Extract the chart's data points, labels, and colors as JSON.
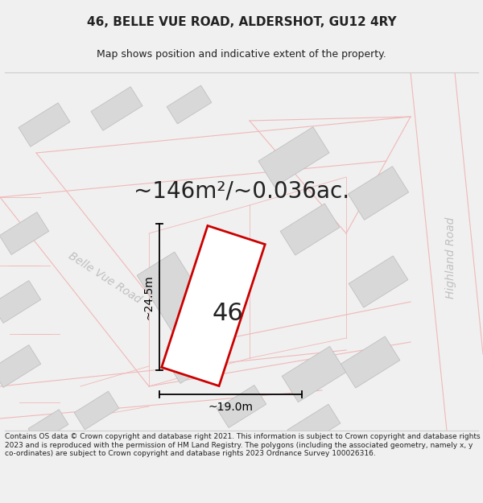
{
  "title_line1": "46, BELLE VUE ROAD, ALDERSHOT, GU12 4RY",
  "title_line2": "Map shows position and indicative extent of the property.",
  "area_text": "~146m²/~0.036ac.",
  "property_number": "46",
  "dim_height": "~24.5m",
  "dim_width": "~19.0m",
  "road_label_left": "Belle Vue Road",
  "road_label_right": "Highland Road",
  "footer_text": "Contains OS data © Crown copyright and database right 2021. This information is subject to Crown copyright and database rights 2023 and is reproduced with the permission of HM Land Registry. The polygons (including the associated geometry, namely x, y co-ordinates) are subject to Crown copyright and database rights 2023 Ordnance Survey 100026316.",
  "bg_color": "#f0f0f0",
  "map_bg": "#ffffff",
  "road_line_color": "#f0b8b8",
  "building_color": "#d8d8d8",
  "building_edge": "#c0c0c0",
  "property_fill": "#ffffff",
  "property_edge": "#cc0000",
  "dim_color": "#000000",
  "text_color": "#222222",
  "road_text_color": "#c0c0c0",
  "title_fontsize": 11,
  "subtitle_fontsize": 9,
  "area_fontsize": 20,
  "number_fontsize": 22,
  "dim_fontsize": 10,
  "road_label_fontsize": 10,
  "footer_fontsize": 6.5
}
